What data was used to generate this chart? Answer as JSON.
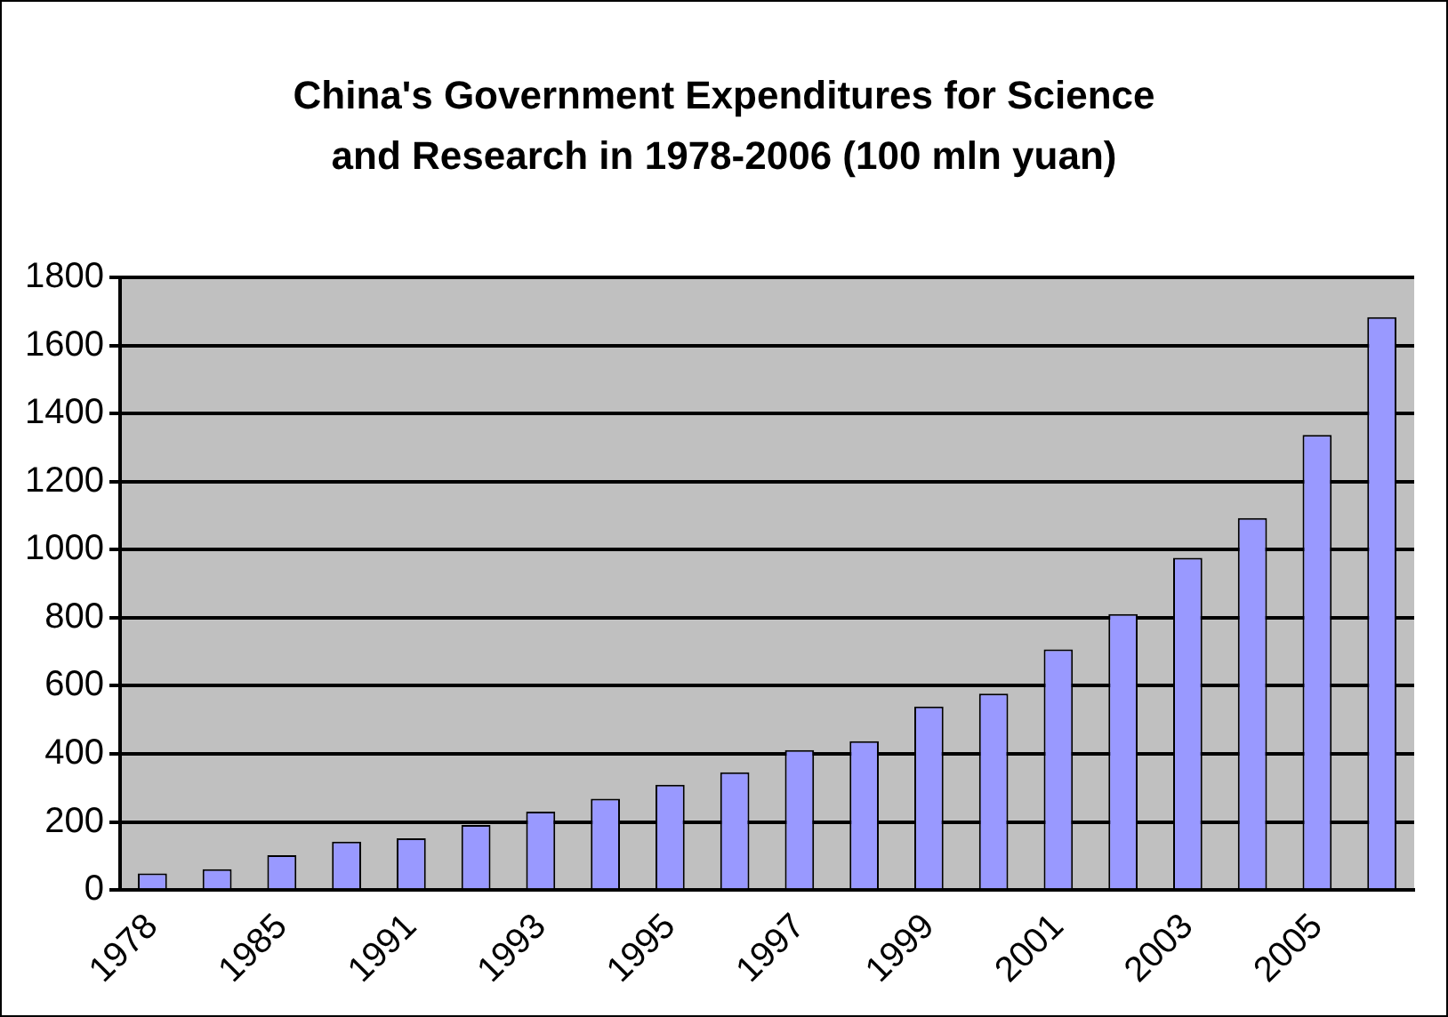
{
  "chart_data": {
    "type": "bar",
    "title": "China's Government Expenditures for Science and Research in 1978-2006 (100 mln yuan)",
    "categories": [
      "1978",
      null,
      "1985",
      null,
      "1991",
      null,
      "1993",
      null,
      "1995",
      null,
      "1997",
      null,
      "1999",
      null,
      "2001",
      null,
      "2003",
      null,
      "2005",
      null
    ],
    "values": [
      49,
      61,
      102,
      142,
      152,
      191,
      230,
      268,
      309,
      346,
      411,
      437,
      539,
      577,
      707,
      811,
      976,
      1093,
      1337,
      1683
    ],
    "color": "#9999ff",
    "ylim": [
      0,
      1800
    ],
    "yticks": [
      0,
      200,
      400,
      600,
      800,
      1000,
      1200,
      1400,
      1600,
      1800
    ],
    "grid": "y",
    "legend": false
  }
}
